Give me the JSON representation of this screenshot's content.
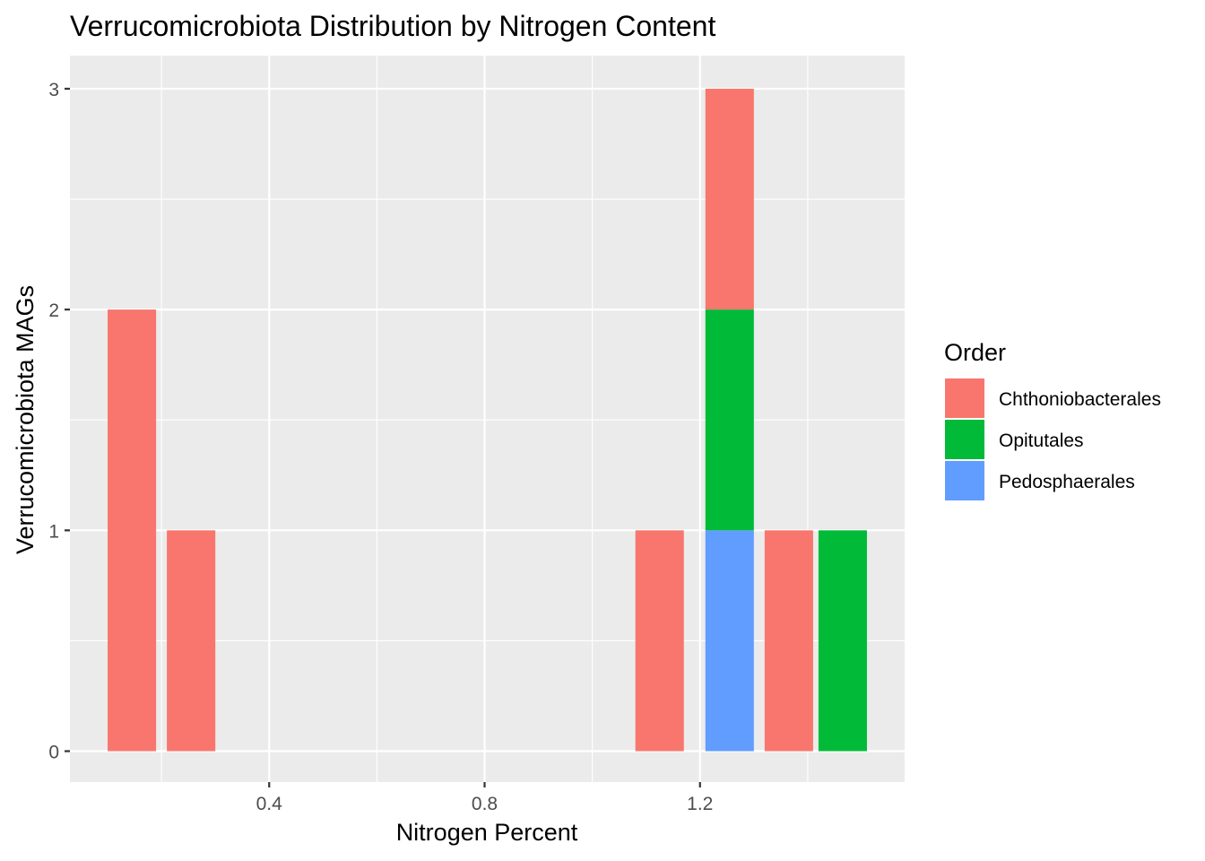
{
  "chart_data": {
    "type": "bar",
    "stacked": true,
    "title": "Verrucomicrobiota Distribution by Nitrogen Content",
    "xlabel": "Nitrogen Percent",
    "ylabel": "Verrucomicrobiota MAGs",
    "xlim": [
      0.03,
      1.58
    ],
    "ylim": [
      -0.14,
      3.15
    ],
    "x_ticks": [
      0.4,
      0.8,
      1.2
    ],
    "x_tick_labels": [
      "0.4",
      "0.8",
      "1.2"
    ],
    "y_ticks": [
      0,
      1,
      2,
      3
    ],
    "y_tick_labels": [
      "0",
      "1",
      "2",
      "3"
    ],
    "grid": true,
    "panel_background": "#EBEBEB",
    "legend": {
      "title": "Order",
      "position": "right",
      "entries": [
        "Chthoniobacterales",
        "Opitutales",
        "Pedosphaerales"
      ]
    },
    "series": [
      {
        "name": "Chthoniobacterales",
        "color": "#F8766D"
      },
      {
        "name": "Opitutales",
        "color": "#00BA38"
      },
      {
        "name": "Pedosphaerales",
        "color": "#619CFF"
      }
    ],
    "bars": [
      {
        "x_min": 0.1,
        "x_max": 0.19,
        "segments": [
          {
            "series": "Chthoniobacterales",
            "y0": 0,
            "y1": 2
          }
        ]
      },
      {
        "x_min": 0.21,
        "x_max": 0.3,
        "segments": [
          {
            "series": "Chthoniobacterales",
            "y0": 0,
            "y1": 1
          }
        ]
      },
      {
        "x_min": 1.08,
        "x_max": 1.17,
        "segments": [
          {
            "series": "Chthoniobacterales",
            "y0": 0,
            "y1": 1
          }
        ]
      },
      {
        "x_min": 1.21,
        "x_max": 1.3,
        "segments": [
          {
            "series": "Pedosphaerales",
            "y0": 0,
            "y1": 1
          },
          {
            "series": "Opitutales",
            "y0": 1,
            "y1": 2
          },
          {
            "series": "Chthoniobacterales",
            "y0": 2,
            "y1": 3
          }
        ]
      },
      {
        "x_min": 1.32,
        "x_max": 1.41,
        "segments": [
          {
            "series": "Chthoniobacterales",
            "y0": 0,
            "y1": 1
          }
        ]
      },
      {
        "x_min": 1.42,
        "x_max": 1.51,
        "segments": [
          {
            "series": "Opitutales",
            "y0": 0,
            "y1": 1
          }
        ]
      }
    ]
  }
}
